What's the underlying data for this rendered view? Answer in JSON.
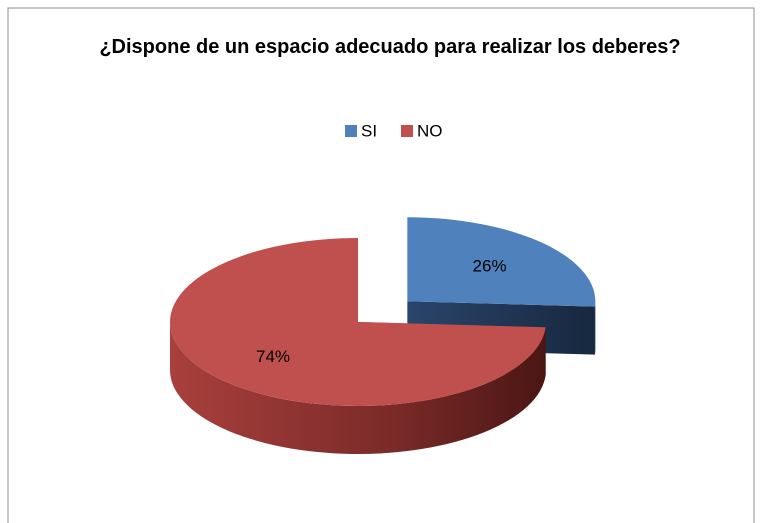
{
  "chart_data": {
    "type": "pie3d",
    "title": "¿Dispone de un espacio adecuado para realizar los deberes?",
    "categories": [
      "SI",
      "NO"
    ],
    "values": [
      26,
      74
    ],
    "value_labels": [
      "26%",
      "74%"
    ],
    "colors": [
      "#4f81bd",
      "#c0504d"
    ],
    "exploded": [
      true,
      false
    ],
    "legend": "top"
  }
}
